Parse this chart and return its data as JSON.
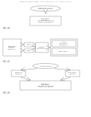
{
  "bg_color": "#ffffff",
  "header_text": "Patent Application Publication   Aug. 23, 2012  Sheet 1 of 12   US 2012/0208214 A1",
  "fig_label_1": "FIG. 20",
  "fig_label_2": "FIG. 21",
  "fig_label_3": "FIG. 22",
  "diagram1": {
    "oval_text": "Optimization of Solvent\nComposition System",
    "box_text": "Computational\nComputations\napparent small structures\nin Figures 1-18, and/or 3"
  },
  "diagram2": {
    "left_box_text": "Computational\nMicroscopy\nand\nspectroscopy",
    "middle_box1": "Select",
    "middle_box2": "Select",
    "center_box": "Synthesis /\nCharacterization",
    "right_top_box": "Physical\nCharacterization\nEnvironmental",
    "right_box": "Transformation"
  },
  "diagram3": {
    "oval_text": "Carbon Sources",
    "left_box": "Synthesizing\nChemistry",
    "right_box": "Crystallization\nChemistry",
    "bottom_box": "Computational\nComputations\napparent small structures\nin Figures 2-3, and/or 3"
  },
  "text_color": "#444444",
  "edge_color": "#888888",
  "lw": 0.35
}
